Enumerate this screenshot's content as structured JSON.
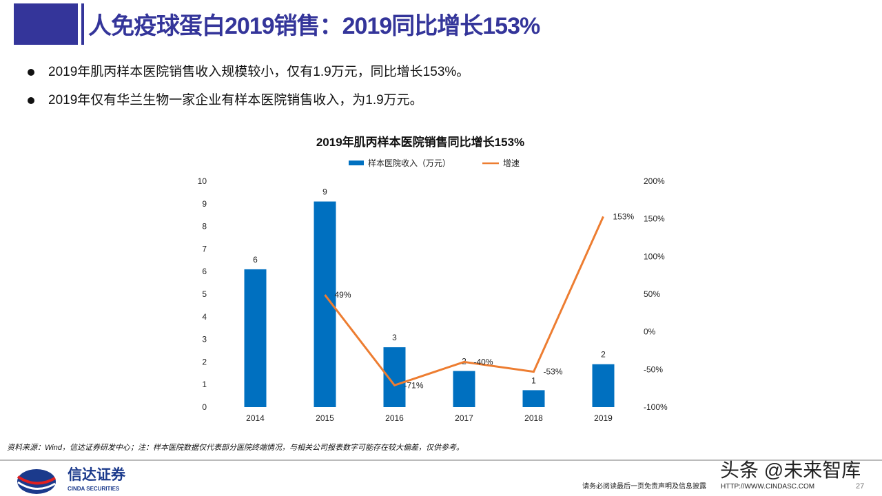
{
  "header": {
    "title": "人免疫球蛋白2019销售：2019同比增长153%"
  },
  "bullets": [
    "2019年肌丙样本医院销售收入规模较小，仅有1.9万元，同比增长153%。",
    "2019年仅有华兰生物一家企业有样本医院销售收入，为1.9万元。"
  ],
  "chart_data": {
    "type": "bar+line",
    "title": "2019年肌丙样本医院销售同比增长153%",
    "categories": [
      "2014",
      "2015",
      "2016",
      "2017",
      "2018",
      "2019"
    ],
    "series": [
      {
        "name": "样本医院收入（万元）",
        "type": "bar",
        "axis": "left",
        "values": [
          6.1,
          9.1,
          2.65,
          1.6,
          0.75,
          1.9
        ],
        "labels": [
          "6",
          "9",
          "3",
          "2",
          "1",
          "2"
        ],
        "color": "#0070c0"
      },
      {
        "name": "增速",
        "type": "line",
        "axis": "right",
        "values": [
          null,
          49,
          -71,
          -40,
          -53,
          153
        ],
        "labels": [
          "",
          "49%",
          "-71%",
          "-40%",
          "-53%",
          "153%"
        ],
        "color": "#ed7d31"
      }
    ],
    "left_axis": {
      "range": [
        0,
        10
      ],
      "ticks": [
        "0",
        "1",
        "2",
        "3",
        "4",
        "5",
        "6",
        "7",
        "8",
        "9",
        "10"
      ]
    },
    "right_axis": {
      "range": [
        -100,
        200
      ],
      "ticks": [
        "-100%",
        "-50%",
        "0%",
        "50%",
        "100%",
        "150%",
        "200%"
      ]
    },
    "legend": "top",
    "grid": false
  },
  "footer": {
    "source": "资料来源：Wind，信达证券研发中心；注：样本医院数据仅代表部分医院终端情况，与相关公司报表数字可能存在较大偏差，仅供参考。",
    "logo_cn": "信达证券",
    "logo_en": "CINDA SECURITIES",
    "watermark": "头条 @未来智库",
    "disclaimer": "请务必阅读最后一页免责声明及信息披露",
    "url": "HTTP://WWW.CINDASC.COM",
    "page": "27"
  }
}
